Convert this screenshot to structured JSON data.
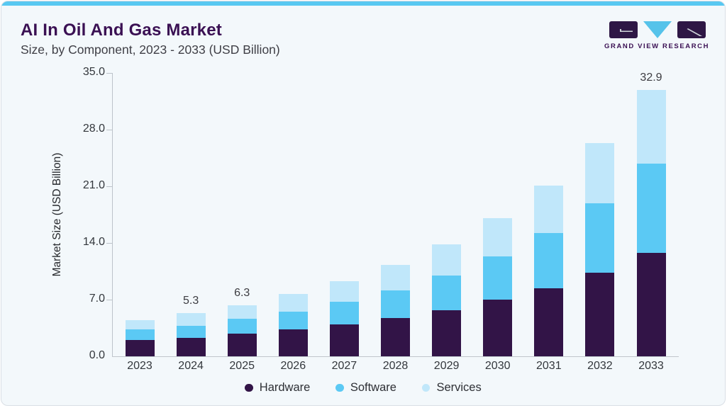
{
  "header": {
    "title": "AI In Oil And Gas Market",
    "subtitle": "Size, by Component, 2023 - 2033 (USD Billion)"
  },
  "logo": {
    "text": "GRAND VIEW RESEARCH",
    "mark_dark_color": "#2e1745",
    "mark_blue_color": "#56c3ea"
  },
  "chart_data": {
    "type": "bar",
    "stacked": true,
    "title": "AI In Oil And Gas Market",
    "subtitle": "Size, by Component, 2023 - 2033 (USD Billion)",
    "ylabel": "Market Size (USD Billion)",
    "xlabel": "",
    "categories": [
      "2023",
      "2024",
      "2025",
      "2026",
      "2027",
      "2028",
      "2029",
      "2030",
      "2031",
      "2032",
      "2033"
    ],
    "series": [
      {
        "name": "Hardware",
        "color": "#321447",
        "values": [
          2.0,
          2.3,
          2.8,
          3.3,
          3.9,
          4.7,
          5.7,
          7.0,
          8.4,
          10.3,
          12.8
        ]
      },
      {
        "name": "Software",
        "color": "#5bc9f4",
        "values": [
          1.3,
          1.5,
          1.8,
          2.2,
          2.8,
          3.4,
          4.3,
          5.3,
          6.8,
          8.6,
          11.0
        ]
      },
      {
        "name": "Services",
        "color": "#c0e7fa",
        "values": [
          1.2,
          1.5,
          1.7,
          2.2,
          2.6,
          3.2,
          3.8,
          4.8,
          5.9,
          7.4,
          9.1
        ]
      }
    ],
    "totals": [
      4.5,
      5.3,
      6.3,
      7.7,
      9.3,
      11.3,
      13.8,
      17.1,
      21.1,
      26.3,
      32.9
    ],
    "data_labels": {
      "2024": "5.3",
      "2025": "6.3",
      "2033": "32.9"
    },
    "yticks": [
      0,
      7,
      14,
      21,
      28,
      35
    ],
    "ylim": [
      0,
      35
    ],
    "grid": false,
    "legend_position": "bottom",
    "legend": [
      "Hardware",
      "Software",
      "Services"
    ]
  }
}
